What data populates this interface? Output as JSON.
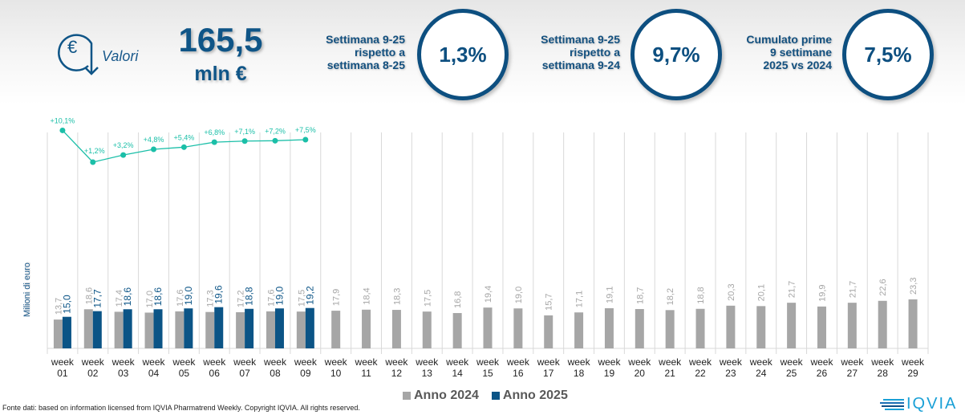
{
  "header": {
    "icon_label": "Valori",
    "total_value": "165,5",
    "total_unit": "mln €",
    "metrics": [
      {
        "label_lines": [
          "Settimana 9-25",
          "rispetto a",
          "settimana 8-25"
        ],
        "value": "1,3%"
      },
      {
        "label_lines": [
          "Settimana 9-25",
          "rispetto a",
          "settimana 9-24"
        ],
        "value": "9,7%"
      },
      {
        "label_lines": [
          "Cumulato prime",
          "9 settimane",
          "2025 vs 2024"
        ],
        "value": "7,5%"
      }
    ]
  },
  "colors": {
    "series_2024": "#a6a6a6",
    "series_2025": "#0b5486",
    "growth_line": "#1bbfa8",
    "brand": "#0f5587",
    "label_2024": "#a6a6a6",
    "label_2025": "#0b5486"
  },
  "chart_data": {
    "type": "bar",
    "title": "",
    "xlabel": "",
    "ylabel": "Milioni di euro",
    "categories": [
      "week 01",
      "week 02",
      "week 03",
      "week 04",
      "week 05",
      "week 06",
      "week 07",
      "week 08",
      "week 09",
      "week 10",
      "week 11",
      "week 12",
      "week 13",
      "week 14",
      "week 15",
      "week 16",
      "week 17",
      "week 18",
      "week 19",
      "week 20",
      "week 21",
      "week 22",
      "week 23",
      "week 24",
      "week 25",
      "week 26",
      "week 27",
      "week 28",
      "week 29"
    ],
    "series": [
      {
        "name": "Anno 2024",
        "values": [
          13.7,
          18.6,
          17.4,
          17.0,
          17.6,
          17.3,
          17.2,
          17.6,
          17.5,
          17.9,
          18.4,
          18.3,
          17.5,
          16.8,
          19.4,
          19.0,
          15.7,
          17.1,
          19.1,
          18.7,
          18.2,
          18.8,
          20.3,
          20.1,
          21.7,
          19.9,
          21.7,
          22.6,
          23.3
        ]
      },
      {
        "name": "Anno 2025",
        "values": [
          15.0,
          17.7,
          18.6,
          18.6,
          19.0,
          19.6,
          18.8,
          19.0,
          19.2
        ]
      }
    ],
    "growth_line": {
      "name": "Cumulato 2025 vs 2024",
      "values": [
        10.1,
        1.2,
        3.2,
        4.8,
        5.4,
        6.8,
        7.1,
        7.2,
        7.5
      ],
      "labels": [
        "+10,1%",
        "+1,2%",
        "+3,2%",
        "+4,8%",
        "+5,4%",
        "+6,8%",
        "+7,1%",
        "+7,2%",
        "+7,5%"
      ]
    },
    "ylim": [
      0,
      60
    ],
    "grid": false,
    "legend": "bottom-center"
  },
  "legend": {
    "items": [
      "Anno 2024",
      "Anno 2025"
    ]
  },
  "footer": {
    "source": "Fonte dati: based on information licensed from IQVIA Pharmatrend Weekly. Copyright IQVIA. All rights reserved.",
    "logo_text": "IQVIA"
  }
}
